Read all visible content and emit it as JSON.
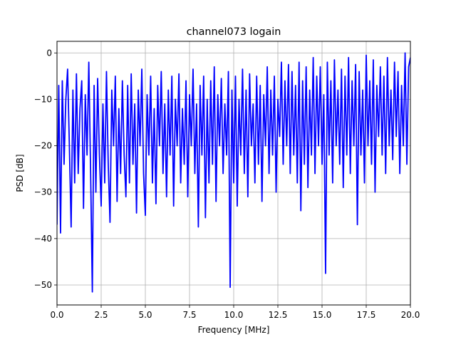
{
  "chart_data": {
    "type": "line",
    "title": "channel073 logain",
    "xlabel": "Frequency [MHz]",
    "ylabel": "PSD [dB]",
    "xlim": [
      0,
      20
    ],
    "ylim": [
      -54.3,
      2.5
    ],
    "x_ticks": [
      0,
      2.5,
      5,
      7.5,
      10,
      12.5,
      15,
      17.5,
      20
    ],
    "x_tick_labels": [
      "0.0",
      "2.5",
      "5.0",
      "7.5",
      "10.0",
      "12.5",
      "15.0",
      "17.5",
      "20.0"
    ],
    "y_ticks": [
      0,
      -10,
      -20,
      -30,
      -40,
      -50
    ],
    "y_tick_labels": [
      "0",
      "−10",
      "−20",
      "−30",
      "−40",
      "−50"
    ],
    "grid": true,
    "legend": "none",
    "series": [
      {
        "color": "#0000ff",
        "x": [
          0,
          0.1,
          0.2,
          0.3,
          0.4,
          0.5,
          0.6,
          0.7,
          0.8,
          0.9,
          1.0,
          1.1,
          1.2,
          1.3,
          1.4,
          1.5,
          1.6,
          1.7,
          1.8,
          1.9,
          2.0,
          2.1,
          2.2,
          2.3,
          2.4,
          2.5,
          2.6,
          2.7,
          2.8,
          2.9,
          3.0,
          3.1,
          3.2,
          3.3,
          3.4,
          3.5,
          3.6,
          3.7,
          3.8,
          3.9,
          4.0,
          4.1,
          4.2,
          4.3,
          4.4,
          4.5,
          4.6,
          4.7,
          4.8,
          4.9,
          5.0,
          5.1,
          5.2,
          5.3,
          5.4,
          5.5,
          5.6,
          5.7,
          5.8,
          5.9,
          6.0,
          6.1,
          6.2,
          6.3,
          6.4,
          6.5,
          6.6,
          6.7,
          6.8,
          6.9,
          7.0,
          7.1,
          7.2,
          7.3,
          7.4,
          7.5,
          7.6,
          7.7,
          7.8,
          7.9,
          8.0,
          8.1,
          8.2,
          8.3,
          8.4,
          8.5,
          8.6,
          8.7,
          8.8,
          8.9,
          9.0,
          9.1,
          9.2,
          9.3,
          9.4,
          9.5,
          9.6,
          9.7,
          9.8,
          9.9,
          10.0,
          10.1,
          10.2,
          10.3,
          10.4,
          10.5,
          10.6,
          10.7,
          10.8,
          10.9,
          11.0,
          11.1,
          11.2,
          11.3,
          11.4,
          11.5,
          11.6,
          11.7,
          11.8,
          11.9,
          12.0,
          12.1,
          12.2,
          12.3,
          12.4,
          12.5,
          12.6,
          12.7,
          12.8,
          12.9,
          13.0,
          13.1,
          13.2,
          13.3,
          13.4,
          13.5,
          13.6,
          13.7,
          13.8,
          13.9,
          14.0,
          14.1,
          14.2,
          14.3,
          14.4,
          14.5,
          14.6,
          14.7,
          14.8,
          14.9,
          15.0,
          15.1,
          15.2,
          15.3,
          15.4,
          15.5,
          15.6,
          15.7,
          15.8,
          15.9,
          16.0,
          16.1,
          16.2,
          16.3,
          16.4,
          16.5,
          16.6,
          16.7,
          16.8,
          16.9,
          17.0,
          17.1,
          17.2,
          17.3,
          17.4,
          17.5,
          17.6,
          17.7,
          17.8,
          17.9,
          18.0,
          18.1,
          18.2,
          18.3,
          18.4,
          18.5,
          18.6,
          18.7,
          18.8,
          18.9,
          19.0,
          19.1,
          19.2,
          19.3,
          19.4,
          19.5,
          19.6,
          19.7,
          19.8,
          19.9,
          20.0
        ],
        "y": [
          -37,
          -7,
          -38.8,
          -6,
          -24,
          -10,
          -3.5,
          -20,
          -37.5,
          -8,
          -28,
          -4.5,
          -26,
          -12,
          -6,
          -33.5,
          -9,
          -22,
          -2,
          -25,
          -51.5,
          -7,
          -30,
          -5.5,
          -22,
          -33,
          -11,
          -28,
          -4,
          -24,
          -36.5,
          -8,
          -20,
          -5,
          -32,
          -12,
          -26,
          -6,
          -22,
          -31,
          -7,
          -28,
          -4.5,
          -24,
          -11,
          -34.5,
          -8,
          -20,
          -3.5,
          -26,
          -35,
          -9,
          -22,
          -5,
          -28,
          -12,
          -32.5,
          -7,
          -20,
          -4,
          -26,
          -11,
          -31,
          -8,
          -22,
          -5,
          -33,
          -10,
          -20,
          -4.5,
          -28,
          -12,
          -24,
          -6,
          -31,
          -9,
          -20,
          -3.5,
          -26,
          -11,
          -37.5,
          -7,
          -22,
          -5,
          -35.5,
          -10,
          -28,
          -6,
          -24,
          -3,
          -32,
          -9,
          -20,
          -5.5,
          -26,
          -11,
          -22,
          -4,
          -50.5,
          -8,
          -28,
          -5,
          -33,
          -10,
          -22,
          -3.5,
          -26,
          -8,
          -31,
          -4.5,
          -20,
          -11,
          -28,
          -5,
          -24,
          -7,
          -32,
          -9,
          -20,
          -3,
          -26,
          -8,
          -22,
          -5,
          -30,
          -10,
          -18,
          -2,
          -24,
          -6,
          -20,
          -2.5,
          -26,
          -4,
          -22,
          -7,
          -28,
          -2,
          -34,
          -6,
          -24,
          -3,
          -29,
          -8,
          -22,
          -1,
          -26,
          -5,
          -20,
          -3,
          -24,
          -9,
          -47.5,
          -2,
          -22,
          -6,
          -28,
          -1.5,
          -20,
          -8,
          -24,
          -3.5,
          -29,
          -5,
          -22,
          -1,
          -26,
          -6,
          -20,
          -2.5,
          -37,
          -4,
          -22,
          -8,
          -28,
          -0.5,
          -20,
          -6,
          -24,
          -1.5,
          -30,
          -7,
          -18,
          -3,
          -22,
          -5,
          -26,
          -1,
          -20,
          -8,
          -23,
          -2,
          -18,
          -4,
          -26,
          -7,
          -20,
          0,
          -24,
          -3,
          -1
        ]
      }
    ]
  }
}
